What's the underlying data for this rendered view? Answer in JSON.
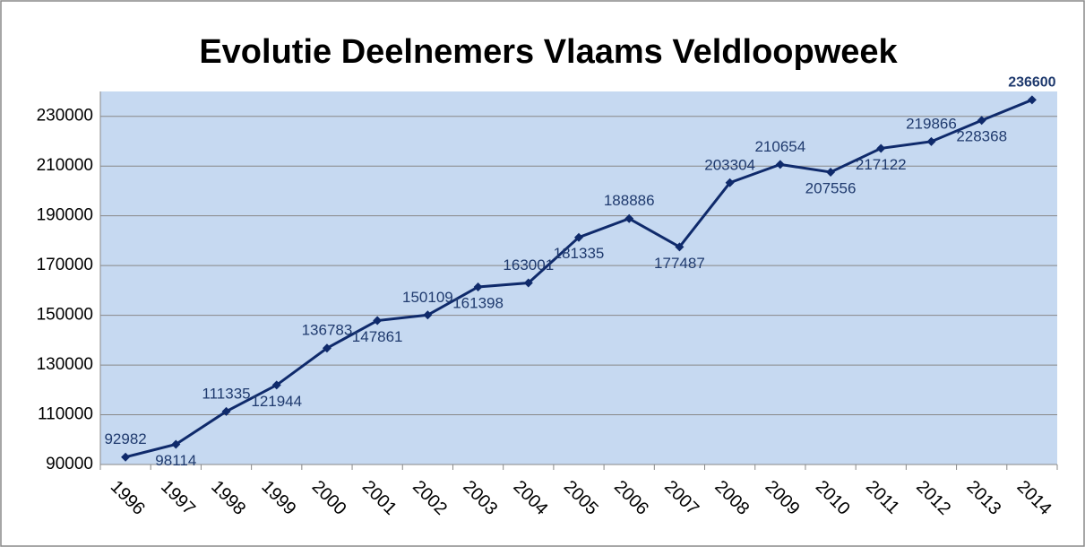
{
  "chart_data": {
    "type": "line",
    "title": "Evolutie Deelnemers Vlaams Veldloopweek",
    "categories": [
      "1996",
      "1997",
      "1998",
      "1999",
      "2000",
      "2001",
      "2002",
      "2003",
      "2004",
      "2005",
      "2006",
      "2007",
      "2008",
      "2009",
      "2010",
      "2011",
      "2012",
      "2013",
      "2014"
    ],
    "series": [
      {
        "name": "Deelnemers",
        "color": "#0f2a6b",
        "values": [
          92982,
          98114,
          111335,
          121944,
          136783,
          147861,
          150109,
          161398,
          163001,
          181335,
          188886,
          177487,
          203304,
          210654,
          207556,
          217122,
          219866,
          228368,
          236600
        ]
      }
    ],
    "ylim": [
      90000,
      240000
    ],
    "yticks": [
      90000,
      110000,
      130000,
      150000,
      170000,
      190000,
      210000,
      230000
    ],
    "grid": true,
    "plot_background": "#c6d9f1"
  }
}
